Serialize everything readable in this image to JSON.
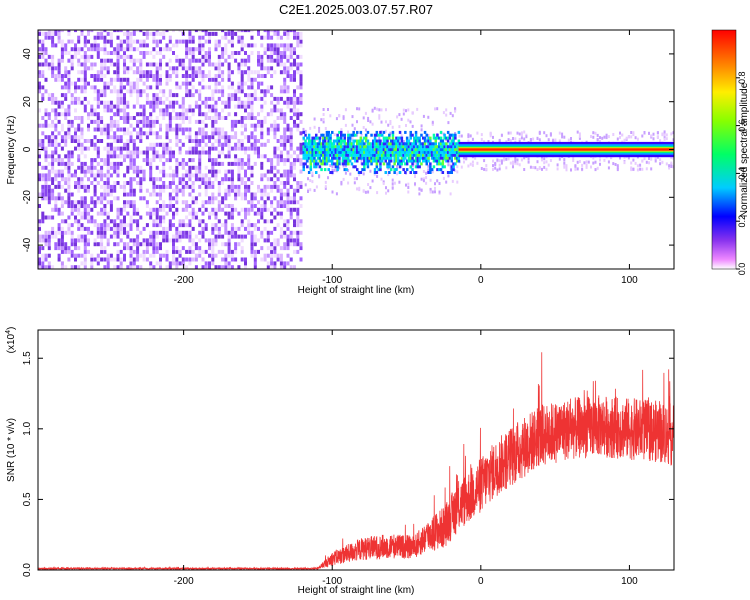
{
  "title": "C2E1.2025.003.07.57.R07",
  "chart_data": [
    {
      "type": "heatmap",
      "xlabel": "Height of straight line (km)",
      "ylabel": "Frequency (Hz)",
      "xlim": [
        -298,
        130
      ],
      "ylim": [
        -50,
        50
      ],
      "xticks": [
        -200,
        -100,
        0,
        100
      ],
      "yticks": [
        -40,
        -20,
        0,
        20,
        40
      ],
      "colorbar": {
        "label": "Normalized spectral amplitude",
        "ticks": [
          "0.0",
          "0.2",
          "0.4",
          "0.6",
          "0.8"
        ],
        "range": [
          0,
          1
        ]
      },
      "regions": [
        {
          "x": [
            -298,
            -120
          ],
          "freq_band": [
            -50,
            50
          ],
          "amplitude": "low, uniform noise"
        },
        {
          "x": [
            -120,
            -15
          ],
          "freq_band": [
            -10,
            10
          ],
          "center_freq": 0,
          "amplitude": "medium"
        },
        {
          "x": [
            -15,
            130
          ],
          "freq_band": [
            -3,
            3
          ],
          "center_freq": 0,
          "amplitude": "high"
        }
      ]
    },
    {
      "type": "line",
      "xlabel": "Height of straight line (km)",
      "ylabel": "SNR (10 * v/v)",
      "y_multiplier": "(x10",
      "y_multiplier_exp": "4",
      "y_multiplier_close": ")",
      "xlim": [
        -298,
        130
      ],
      "ylim": [
        0,
        1.7
      ],
      "xticks": [
        -200,
        -100,
        0,
        100
      ],
      "yticks": [
        "0.0",
        "0.5",
        "1.0",
        "1.5"
      ],
      "color": "#ee3333",
      "series": [
        {
          "x": [
            -298,
            -200,
            -110,
            -100,
            -80,
            -60,
            -45,
            -35,
            -25,
            -15,
            0,
            10,
            20,
            30,
            40,
            60,
            80,
            100,
            120,
            130
          ],
          "y": [
            0.01,
            0.01,
            0.01,
            0.08,
            0.15,
            0.17,
            0.16,
            0.25,
            0.3,
            0.45,
            0.6,
            0.72,
            0.8,
            0.88,
            0.95,
            1.0,
            1.02,
            1.0,
            0.98,
            0.95
          ],
          "spread": [
            0.005,
            0.005,
            0.005,
            0.05,
            0.08,
            0.09,
            0.08,
            0.12,
            0.15,
            0.18,
            0.2,
            0.2,
            0.22,
            0.22,
            0.22,
            0.22,
            0.22,
            0.22,
            0.22,
            0.22
          ]
        }
      ]
    }
  ]
}
